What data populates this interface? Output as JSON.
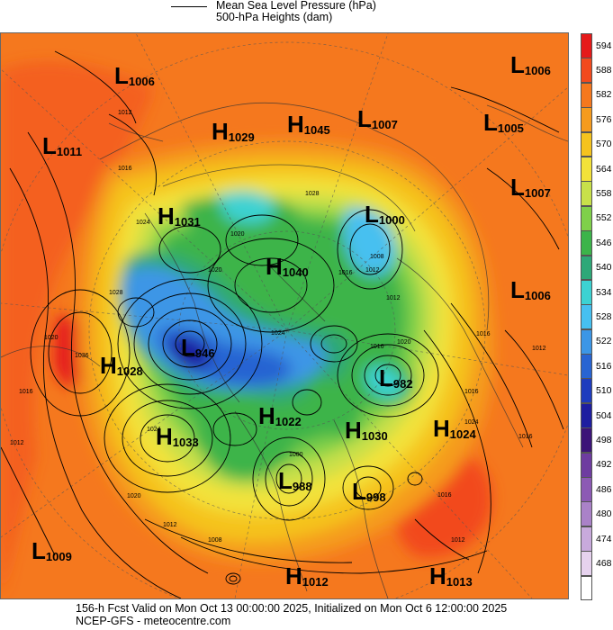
{
  "header": {
    "line1": "Mean Sea Level Pressure (hPa)",
    "line2": "500-hPa Heights (dam)"
  },
  "footer": {
    "valid": "156-h Fcst Valid on Mon Oct 13 00:00:00 2025, Initialized on Mon Oct  6 12:00:00 2025",
    "source": "NCEP-GFS  - meteocentre.com"
  },
  "colorbar": [
    {
      "label": "594",
      "color": "#e51a1a"
    },
    {
      "label": "588",
      "color": "#f24a1e"
    },
    {
      "label": "582",
      "color": "#f5781e"
    },
    {
      "label": "576",
      "color": "#f59b1e"
    },
    {
      "label": "570",
      "color": "#f5c31e"
    },
    {
      "label": "564",
      "color": "#f3e23a"
    },
    {
      "label": "558",
      "color": "#c8e04a"
    },
    {
      "label": "552",
      "color": "#7fd04a"
    },
    {
      "label": "546",
      "color": "#3cb44a"
    },
    {
      "label": "540",
      "color": "#2ea878"
    },
    {
      "label": "534",
      "color": "#3cd2d2"
    },
    {
      "label": "528",
      "color": "#46c0f0"
    },
    {
      "label": "522",
      "color": "#3c96e6"
    },
    {
      "label": "516",
      "color": "#2864d2"
    },
    {
      "label": "510",
      "color": "#1e3cbe"
    },
    {
      "label": "504",
      "color": "#1e1ea0"
    },
    {
      "label": "498",
      "color": "#3c1478"
    },
    {
      "label": "492",
      "color": "#6e3ca0"
    },
    {
      "label": "486",
      "color": "#8c5ab4"
    },
    {
      "label": "480",
      "color": "#aa82c8"
    },
    {
      "label": "474",
      "color": "#c8aadc"
    },
    {
      "label": "468",
      "color": "#e6d2ee"
    },
    {
      "label": "",
      "color": "#ffffff"
    }
  ],
  "centers": [
    {
      "type": "L",
      "value": "1006"
    },
    {
      "type": "L",
      "value": "1006"
    },
    {
      "type": "L",
      "value": "1011"
    },
    {
      "type": "H",
      "value": "1029"
    },
    {
      "type": "H",
      "value": "1045"
    },
    {
      "type": "L",
      "value": "1007"
    },
    {
      "type": "L",
      "value": "1005"
    },
    {
      "type": "L",
      "value": "1007"
    },
    {
      "type": "H",
      "value": "1031"
    },
    {
      "type": "L",
      "value": "1000"
    },
    {
      "type": "H",
      "value": "1040"
    },
    {
      "type": "L",
      "value": "1006"
    },
    {
      "type": "H",
      "value": "1028"
    },
    {
      "type": "L",
      "value": "946"
    },
    {
      "type": "L",
      "value": "982"
    },
    {
      "type": "H",
      "value": "1022"
    },
    {
      "type": "H",
      "value": "1033"
    },
    {
      "type": "H",
      "value": "1030"
    },
    {
      "type": "H",
      "value": "1024"
    },
    {
      "type": "L",
      "value": "988"
    },
    {
      "type": "L",
      "value": "998"
    },
    {
      "type": "L",
      "value": "1009"
    },
    {
      "type": "H",
      "value": "1012"
    },
    {
      "type": "H",
      "value": "1013"
    }
  ],
  "contour_labels": [
    "1012",
    "1016",
    "1024",
    "1028",
    "1020",
    "1036",
    "1016",
    "1024",
    "1020",
    "1020",
    "1028",
    "1016",
    "1008",
    "1012",
    "1012",
    "1016",
    "1016",
    "1020",
    "1024",
    "1016",
    "1020",
    "1012",
    "1008",
    "1012",
    "1000",
    "1012",
    "1016",
    "1016",
    "1012",
    "1024"
  ]
}
